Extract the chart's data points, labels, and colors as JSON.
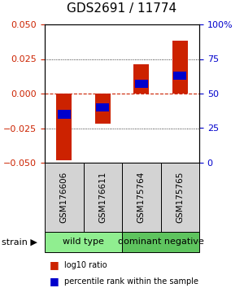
{
  "title": "GDS2691 / 11774",
  "samples": [
    "GSM176606",
    "GSM176611",
    "GSM175764",
    "GSM175765"
  ],
  "log10_ratio": [
    -0.048,
    -0.022,
    0.021,
    0.038
  ],
  "percentile_rank": [
    0.35,
    0.4,
    0.57,
    0.63
  ],
  "groups": [
    {
      "label": "wild type",
      "samples": [
        0,
        1
      ],
      "color": "#90ee90"
    },
    {
      "label": "dominant negative",
      "samples": [
        2,
        3
      ],
      "color": "#5ec45e"
    }
  ],
  "ylim_left": [
    -0.05,
    0.05
  ],
  "ylim_right": [
    0,
    1
  ],
  "yticks_left": [
    -0.05,
    -0.025,
    0,
    0.025,
    0.05
  ],
  "yticks_right": [
    0,
    0.25,
    0.5,
    0.75,
    1.0
  ],
  "ytick_labels_right": [
    "0",
    "25",
    "50",
    "75",
    "100%"
  ],
  "bar_width": 0.4,
  "red_color": "#cc2200",
  "blue_color": "#0000cc",
  "blue_bar_height": 0.006,
  "background_plot": "#ffffff",
  "background_label": "#d3d3d3",
  "title_fontsize": 11,
  "tick_fontsize": 8,
  "label_fontsize": 7.5,
  "legend_fontsize": 7,
  "strain_fontsize": 8,
  "group_fontsize": 8
}
